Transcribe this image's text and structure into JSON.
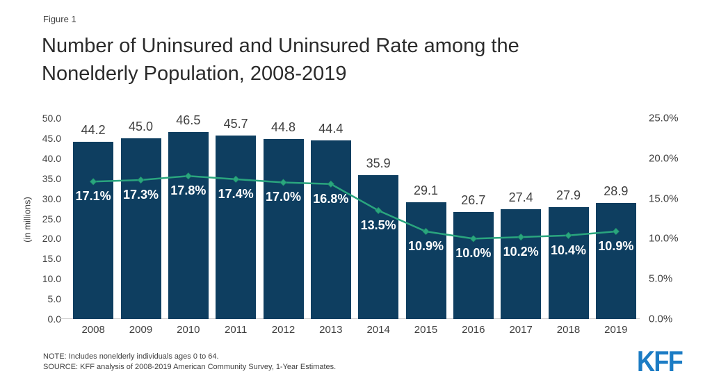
{
  "figure_label": "Figure 1",
  "title": "Number of Uninsured and Uninsured Rate among the Nonelderly Population, 2008-2019",
  "title_lines": [
    "Number of Uninsured and Uninsured Rate among the",
    "Nonelderly Population, 2008-2019"
  ],
  "colors": {
    "bar": "#0e3e60",
    "line": "#2aa57e",
    "marker_stroke": "#1f936c",
    "bar_value_label": "#3f3f3f",
    "rate_label": "#ffffff",
    "axis_text": "#3f3f3f",
    "baseline": "#cfcfcf",
    "title_text": "#2b2b2b",
    "logo_blue": "#1c7cc4"
  },
  "chart_data": {
    "type": "combo",
    "categories": [
      "2008",
      "2009",
      "2010",
      "2011",
      "2012",
      "2013",
      "2014",
      "2015",
      "2016",
      "2017",
      "2018",
      "2019"
    ],
    "series": [
      {
        "name": "Number of Uninsured",
        "type": "bar",
        "axis": "left",
        "values": [
          44.2,
          45.0,
          46.5,
          45.7,
          44.8,
          44.4,
          35.9,
          29.1,
          26.7,
          27.4,
          27.9,
          28.9
        ],
        "labels": [
          "44.2",
          "45.0",
          "46.5",
          "45.7",
          "44.8",
          "44.4",
          "35.9",
          "29.1",
          "26.7",
          "27.4",
          "27.9",
          "28.9"
        ]
      },
      {
        "name": "Uninsured Rate",
        "type": "line",
        "axis": "right",
        "values": [
          17.1,
          17.3,
          17.8,
          17.4,
          17.0,
          16.8,
          13.5,
          10.9,
          10.0,
          10.2,
          10.4,
          10.9
        ],
        "labels": [
          "17.1%",
          "17.3%",
          "17.8%",
          "17.4%",
          "17.0%",
          "16.8%",
          "13.5%",
          "10.9%",
          "10.0%",
          "10.2%",
          "10.4%",
          "10.9%"
        ]
      }
    ],
    "left_axis": {
      "label": "(in millions)",
      "min": 0,
      "max": 50,
      "step": 5,
      "ticks": [
        "50.0",
        "45.0",
        "40.0",
        "35.0",
        "30.0",
        "25.0",
        "20.0",
        "15.0",
        "10.0",
        "5.0",
        "0.0"
      ]
    },
    "right_axis": {
      "min": 0,
      "max": 25,
      "step": 5,
      "ticks": [
        "25.0%",
        "20.0%",
        "15.0%",
        "10.0%",
        "5.0%",
        "0.0%"
      ]
    },
    "grid": false,
    "legend": "none"
  },
  "footer": {
    "note": "NOTE: Includes nonelderly individuals ages 0 to 64.",
    "source": "SOURCE: KFF analysis of 2008-2019 American Community Survey, 1-Year Estimates.",
    "logo": "KFF"
  }
}
